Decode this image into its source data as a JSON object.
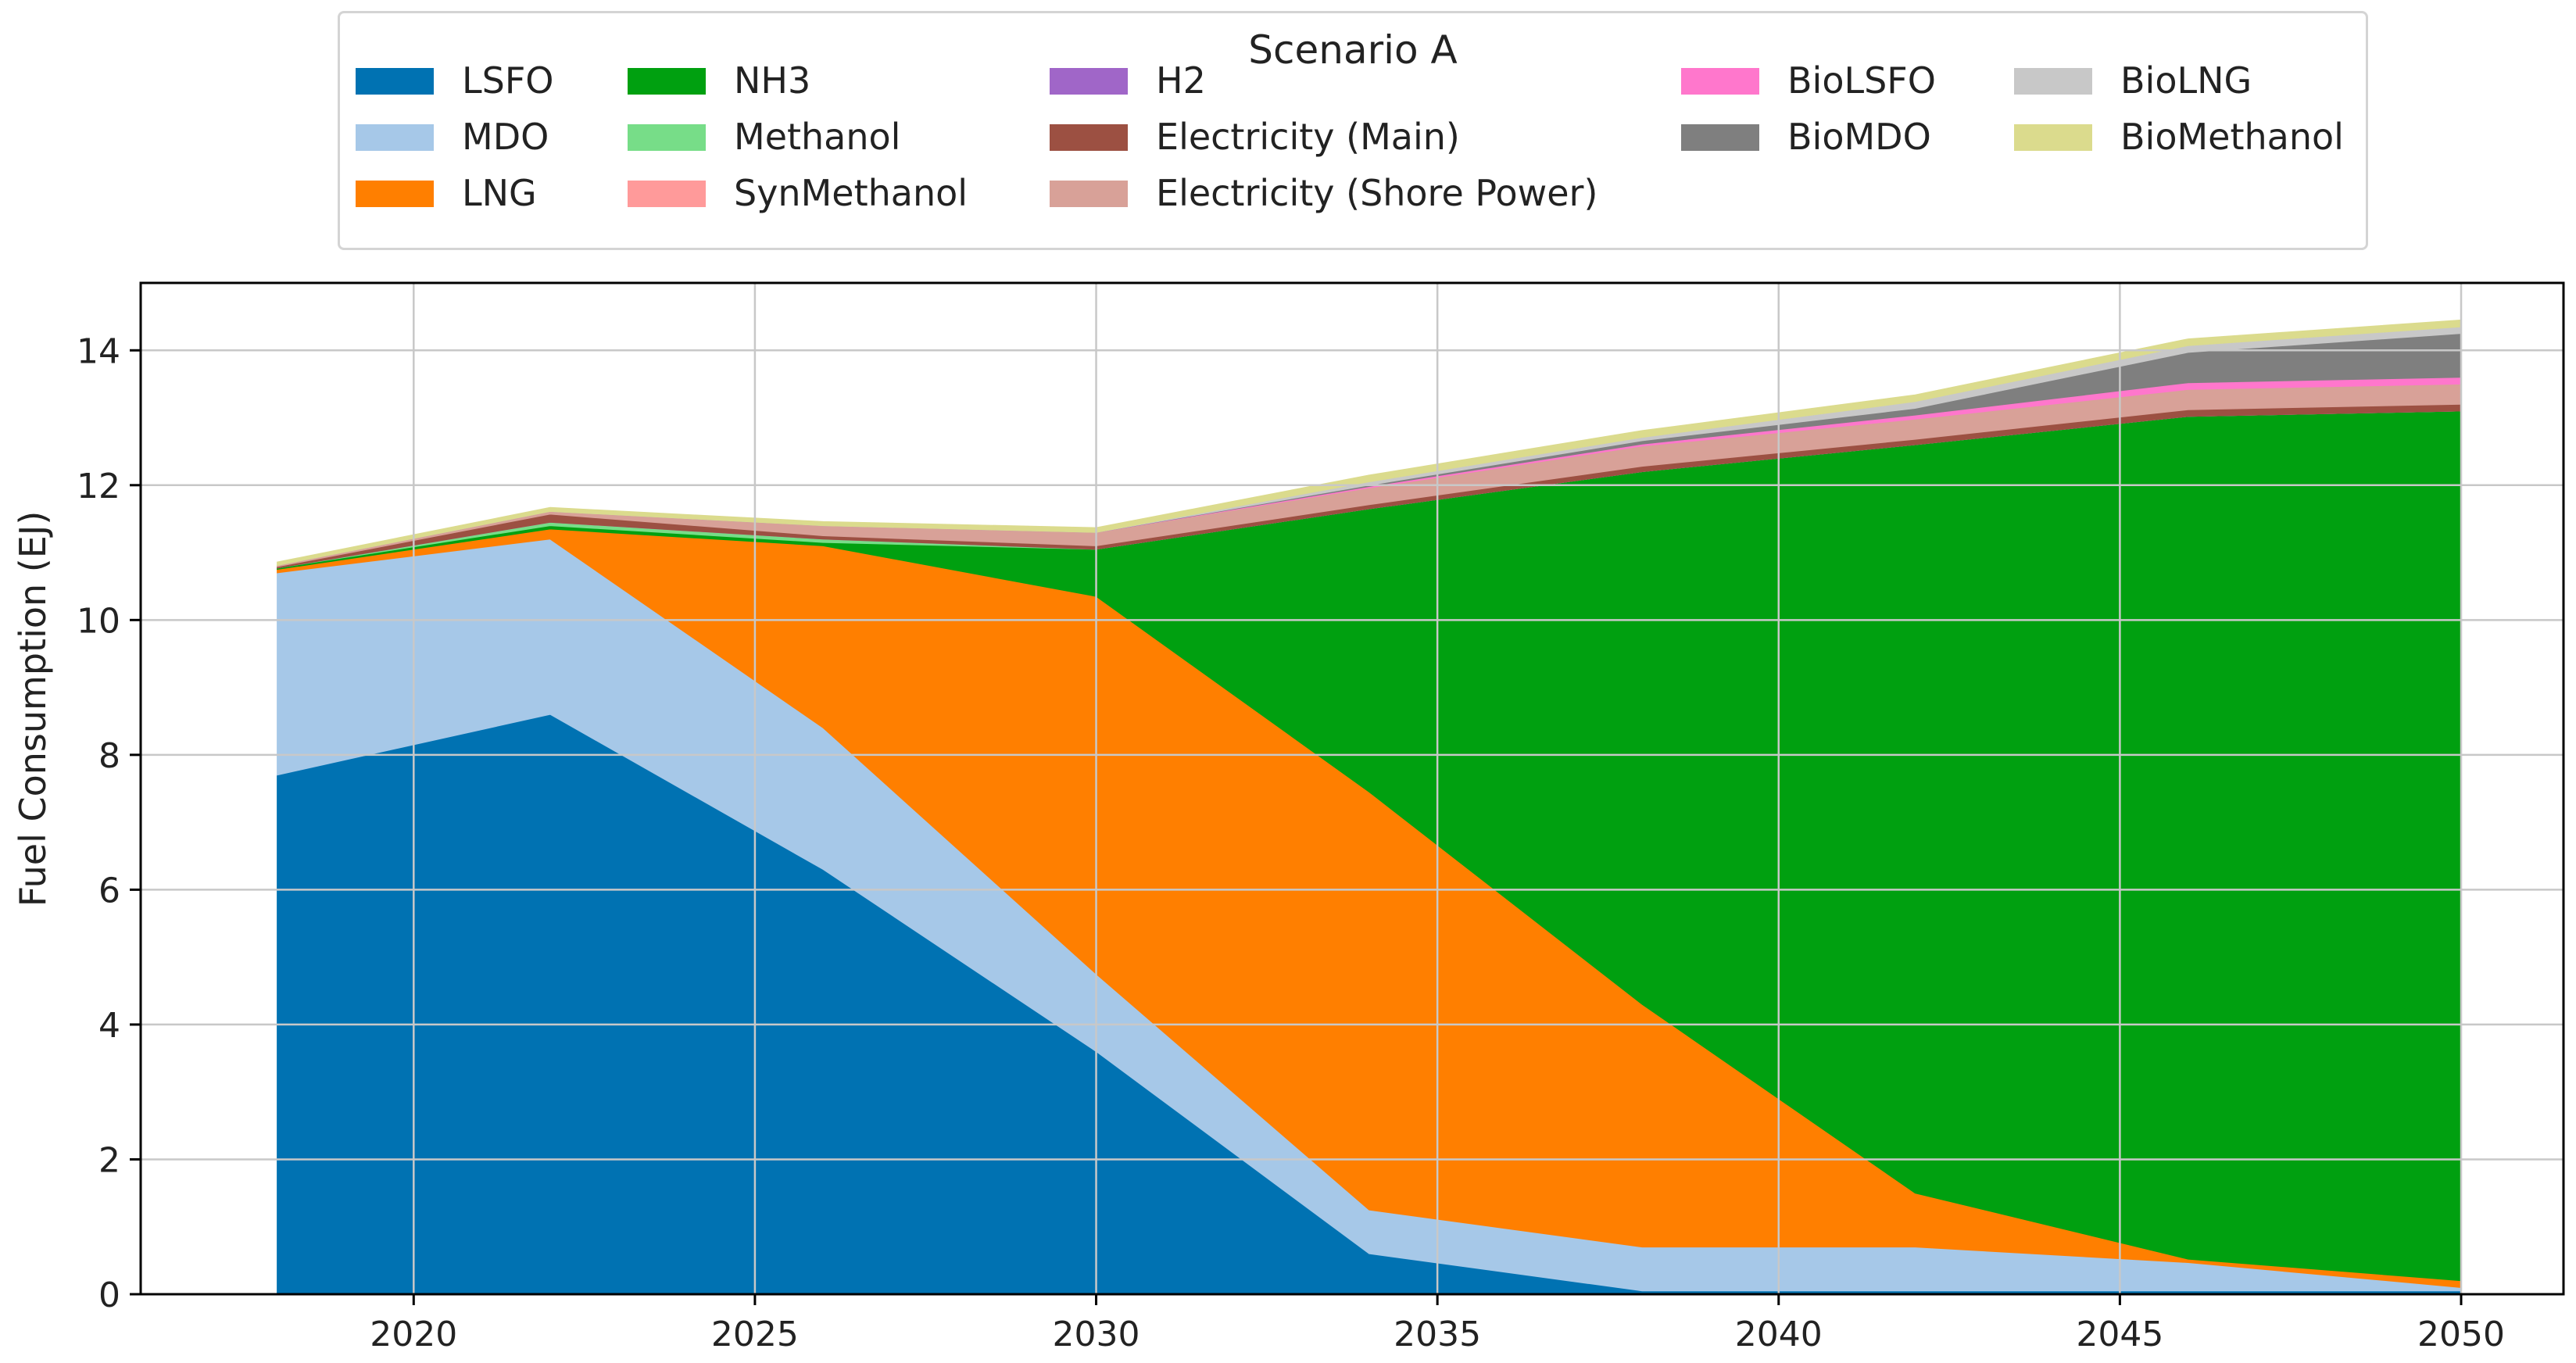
{
  "chart_data": {
    "type": "area",
    "title": "Scenario A",
    "xlabel": "",
    "ylabel": "Fuel Consumption (EJ)",
    "xlim": [
      2016,
      2051.5
    ],
    "ylim": [
      0,
      15
    ],
    "grid": true,
    "legend_position": "top",
    "x": [
      2018,
      2022,
      2026,
      2030,
      2034,
      2038,
      2042,
      2046,
      2050
    ],
    "x_ticks": [
      2020,
      2025,
      2030,
      2035,
      2040,
      2045,
      2050
    ],
    "y_ticks": [
      0,
      2,
      4,
      6,
      8,
      10,
      12,
      14
    ],
    "series": [
      {
        "name": "LSFO",
        "color": "#0072b2",
        "values": [
          7.7,
          8.6,
          6.3,
          3.6,
          0.6,
          0.05,
          0.05,
          0.05,
          0.05
        ]
      },
      {
        "name": "MDO",
        "color": "#a6c8e8",
        "values": [
          3.0,
          2.6,
          2.1,
          1.15,
          0.65,
          0.65,
          0.65,
          0.42,
          0.05
        ]
      },
      {
        "name": "LNG",
        "color": "#ff7f00",
        "values": [
          0.05,
          0.15,
          2.7,
          5.6,
          6.2,
          3.6,
          0.8,
          0.05,
          0.1
        ]
      },
      {
        "name": "NH3",
        "color": "#00a010",
        "values": [
          0.02,
          0.05,
          0.05,
          0.7,
          4.2,
          7.9,
          11.1,
          12.5,
          12.9
        ]
      },
      {
        "name": "Methanol",
        "color": "#77dd88",
        "values": [
          0.0,
          0.05,
          0.05,
          0.0,
          0.0,
          0.0,
          0.0,
          0.0,
          0.0
        ]
      },
      {
        "name": "SynMethanol",
        "color": "#ff9a9a",
        "values": [
          0.0,
          0.0,
          0.0,
          0.0,
          0.0,
          0.0,
          0.0,
          0.0,
          0.0
        ]
      },
      {
        "name": "H2",
        "color": "#a066c8",
        "values": [
          0.0,
          0.0,
          0.0,
          0.0,
          0.0,
          0.0,
          0.0,
          0.0,
          0.0
        ]
      },
      {
        "name": "Electricity (Main)",
        "color": "#9c5042",
        "values": [
          0.02,
          0.12,
          0.05,
          0.05,
          0.06,
          0.08,
          0.08,
          0.1,
          0.1
        ]
      },
      {
        "name": "Electricity (Shore Power)",
        "color": "#d8a198",
        "values": [
          0.02,
          0.04,
          0.15,
          0.2,
          0.25,
          0.3,
          0.3,
          0.3,
          0.3
        ]
      },
      {
        "name": "BioLSFO",
        "color": "#ff77cc",
        "values": [
          0.0,
          0.0,
          0.0,
          0.0,
          0.02,
          0.03,
          0.06,
          0.1,
          0.1
        ]
      },
      {
        "name": "BioMDO",
        "color": "#7f7f7f",
        "values": [
          0.0,
          0.0,
          0.0,
          0.0,
          0.02,
          0.05,
          0.1,
          0.45,
          0.65
        ]
      },
      {
        "name": "BioLNG",
        "color": "#c8c8c8",
        "values": [
          0.0,
          0.0,
          0.0,
          0.0,
          0.05,
          0.05,
          0.1,
          0.1,
          0.1
        ]
      },
      {
        "name": "BioMethanol",
        "color": "#dbdb8d",
        "values": [
          0.05,
          0.06,
          0.06,
          0.07,
          0.1,
          0.1,
          0.1,
          0.1,
          0.1
        ]
      }
    ]
  }
}
